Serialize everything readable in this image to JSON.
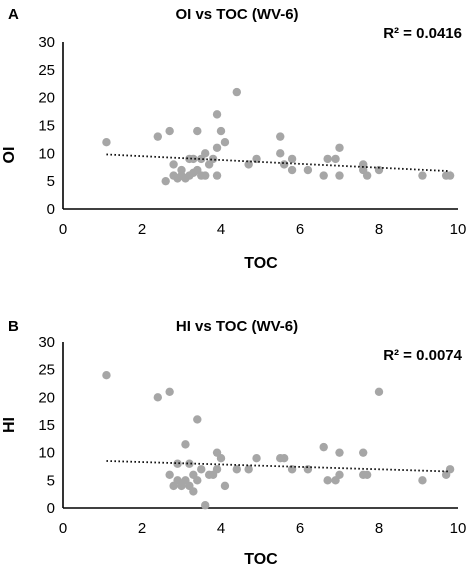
{
  "chart_data": [
    {
      "type": "scatter",
      "panel": "A",
      "title": "OI vs TOC (WV-6)",
      "annotation": "R² = 0.0416",
      "xlabel": "TOC",
      "ylabel": "OI",
      "xlim": [
        0,
        10
      ],
      "ylim": [
        0,
        30
      ],
      "xticks": [
        "0",
        "2",
        "4",
        "6",
        "8",
        "10"
      ],
      "yticks": [
        "0",
        "5",
        "10",
        "15",
        "20",
        "25",
        "30"
      ],
      "grid": false,
      "marker_color": "#a6a6a6",
      "trendline": {
        "x": [
          1.1,
          9.8
        ],
        "y": [
          9.8,
          6.8
        ]
      },
      "points": [
        [
          1.1,
          12
        ],
        [
          2.4,
          13
        ],
        [
          2.6,
          5
        ],
        [
          2.7,
          14
        ],
        [
          2.8,
          6
        ],
        [
          2.8,
          8
        ],
        [
          2.9,
          5.5
        ],
        [
          3.0,
          6
        ],
        [
          3.0,
          7
        ],
        [
          3.1,
          5.5
        ],
        [
          3.2,
          9
        ],
        [
          3.2,
          6
        ],
        [
          3.3,
          6.5
        ],
        [
          3.3,
          9
        ],
        [
          3.4,
          14
        ],
        [
          3.4,
          7
        ],
        [
          3.5,
          6
        ],
        [
          3.5,
          9
        ],
        [
          3.6,
          6
        ],
        [
          3.6,
          10
        ],
        [
          3.7,
          8
        ],
        [
          3.8,
          9
        ],
        [
          3.9,
          6
        ],
        [
          3.9,
          11
        ],
        [
          3.9,
          17
        ],
        [
          4.0,
          14
        ],
        [
          4.1,
          12
        ],
        [
          4.4,
          21
        ],
        [
          4.7,
          8
        ],
        [
          4.9,
          9
        ],
        [
          5.5,
          13
        ],
        [
          5.5,
          10
        ],
        [
          5.6,
          8
        ],
        [
          5.8,
          7
        ],
        [
          5.8,
          9
        ],
        [
          6.2,
          7
        ],
        [
          6.6,
          6
        ],
        [
          6.7,
          9
        ],
        [
          6.9,
          9
        ],
        [
          7.0,
          11
        ],
        [
          7.0,
          6
        ],
        [
          7.6,
          8
        ],
        [
          7.6,
          7
        ],
        [
          7.7,
          6
        ],
        [
          8.0,
          7
        ],
        [
          9.1,
          6
        ],
        [
          9.7,
          6
        ],
        [
          9.8,
          6
        ]
      ]
    },
    {
      "type": "scatter",
      "panel": "B",
      "title": "HI vs TOC (WV-6)",
      "annotation": "R² = 0.0074",
      "xlabel": "TOC",
      "ylabel": "HI",
      "xlim": [
        0,
        10
      ],
      "ylim": [
        0,
        30
      ],
      "xticks": [
        "0",
        "2",
        "4",
        "6",
        "8",
        "10"
      ],
      "yticks": [
        "0",
        "5",
        "10",
        "15",
        "20",
        "25",
        "30"
      ],
      "grid": false,
      "marker_color": "#a6a6a6",
      "trendline": {
        "x": [
          1.1,
          9.8
        ],
        "y": [
          8.5,
          6.6
        ]
      },
      "points": [
        [
          1.1,
          24
        ],
        [
          2.4,
          20
        ],
        [
          2.7,
          21
        ],
        [
          2.7,
          6
        ],
        [
          2.8,
          4
        ],
        [
          2.9,
          8
        ],
        [
          2.9,
          5
        ],
        [
          3.0,
          4
        ],
        [
          3.1,
          11.5
        ],
        [
          3.1,
          5
        ],
        [
          3.2,
          8
        ],
        [
          3.2,
          4
        ],
        [
          3.3,
          3
        ],
        [
          3.3,
          6
        ],
        [
          3.4,
          16
        ],
        [
          3.4,
          5
        ],
        [
          3.5,
          7
        ],
        [
          3.6,
          0.5
        ],
        [
          3.7,
          6
        ],
        [
          3.8,
          6
        ],
        [
          3.9,
          10
        ],
        [
          3.9,
          7
        ],
        [
          4.0,
          9
        ],
        [
          4.1,
          4
        ],
        [
          4.4,
          7
        ],
        [
          4.7,
          7
        ],
        [
          4.9,
          9
        ],
        [
          5.5,
          9
        ],
        [
          5.6,
          9
        ],
        [
          5.8,
          7
        ],
        [
          6.2,
          7
        ],
        [
          6.6,
          11
        ],
        [
          6.7,
          5
        ],
        [
          6.9,
          5
        ],
        [
          7.0,
          10
        ],
        [
          7.0,
          6
        ],
        [
          7.6,
          10
        ],
        [
          7.6,
          6
        ],
        [
          7.7,
          6
        ],
        [
          8.0,
          21
        ],
        [
          9.1,
          5
        ],
        [
          9.7,
          6
        ],
        [
          9.8,
          7
        ]
      ]
    }
  ]
}
